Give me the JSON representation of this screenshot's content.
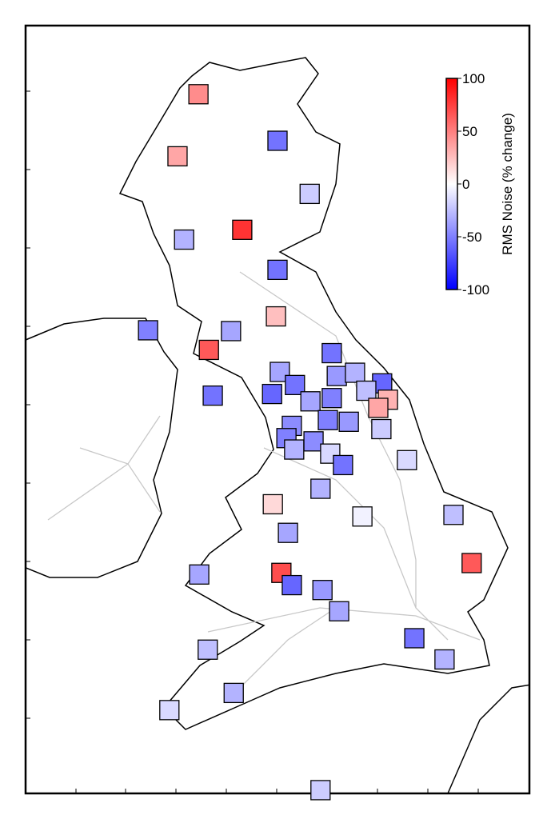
{
  "colorbar": {
    "title": "RMS Noise (% change)",
    "limits": [
      -100,
      100
    ],
    "ticks": [
      100,
      50,
      0,
      -50,
      -100
    ],
    "colormap": [
      "#0000ff",
      "#ffffff",
      "#ff0000"
    ]
  },
  "map_extent": {
    "lon": [
      -10.5,
      2.5
    ],
    "lat": [
      49.8,
      59.2
    ]
  },
  "stations": [
    {
      "lon": -6.04,
      "lat": 58.36,
      "value": 45
    },
    {
      "lon": -6.58,
      "lat": 57.6,
      "value": 35
    },
    {
      "lon": -4.0,
      "lat": 57.79,
      "value": -55
    },
    {
      "lon": -3.17,
      "lat": 57.14,
      "value": -20
    },
    {
      "lon": -4.91,
      "lat": 56.7,
      "value": 80
    },
    {
      "lon": -6.41,
      "lat": 56.58,
      "value": -30
    },
    {
      "lon": -4.0,
      "lat": 56.21,
      "value": -55
    },
    {
      "lon": -4.04,
      "lat": 55.64,
      "value": 25
    },
    {
      "lon": -7.34,
      "lat": 55.47,
      "value": -50
    },
    {
      "lon": -5.2,
      "lat": 55.46,
      "value": -35
    },
    {
      "lon": -5.77,
      "lat": 55.23,
      "value": 65
    },
    {
      "lon": -2.6,
      "lat": 55.19,
      "value": -55
    },
    {
      "lon": -3.94,
      "lat": 54.96,
      "value": -35
    },
    {
      "lon": -2.47,
      "lat": 54.91,
      "value": -40
    },
    {
      "lon": -2.0,
      "lat": 54.95,
      "value": -30
    },
    {
      "lon": -1.3,
      "lat": 54.82,
      "value": -60
    },
    {
      "lon": -3.55,
      "lat": 54.8,
      "value": -55
    },
    {
      "lon": -4.14,
      "lat": 54.69,
      "value": -60
    },
    {
      "lon": -5.67,
      "lat": 54.67,
      "value": -55
    },
    {
      "lon": -1.71,
      "lat": 54.73,
      "value": -25
    },
    {
      "lon": -1.15,
      "lat": 54.62,
      "value": 30
    },
    {
      "lon": -1.4,
      "lat": 54.52,
      "value": 35
    },
    {
      "lon": -2.6,
      "lat": 54.64,
      "value": -50
    },
    {
      "lon": -3.15,
      "lat": 54.6,
      "value": -35
    },
    {
      "lon": -3.63,
      "lat": 54.3,
      "value": -45
    },
    {
      "lon": -2.7,
      "lat": 54.37,
      "value": -50
    },
    {
      "lon": -2.16,
      "lat": 54.35,
      "value": -40
    },
    {
      "lon": -3.77,
      "lat": 54.15,
      "value": -50
    },
    {
      "lon": -1.32,
      "lat": 54.26,
      "value": -20
    },
    {
      "lon": -3.07,
      "lat": 54.11,
      "value": -45
    },
    {
      "lon": -3.57,
      "lat": 54.01,
      "value": -30
    },
    {
      "lon": -2.64,
      "lat": 53.96,
      "value": -15
    },
    {
      "lon": -2.31,
      "lat": 53.82,
      "value": -55
    },
    {
      "lon": -0.66,
      "lat": 53.88,
      "value": -15
    },
    {
      "lon": -2.89,
      "lat": 53.53,
      "value": -30
    },
    {
      "lon": -4.12,
      "lat": 53.34,
      "value": 15
    },
    {
      "lon": -1.81,
      "lat": 53.19,
      "value": -5
    },
    {
      "lon": 0.54,
      "lat": 53.21,
      "value": -25
    },
    {
      "lon": -3.73,
      "lat": 52.99,
      "value": -35
    },
    {
      "lon": 1.01,
      "lat": 52.62,
      "value": 65
    },
    {
      "lon": -6.02,
      "lat": 52.48,
      "value": -35
    },
    {
      "lon": -3.9,
      "lat": 52.5,
      "value": 70
    },
    {
      "lon": -3.63,
      "lat": 52.35,
      "value": -60
    },
    {
      "lon": -2.84,
      "lat": 52.29,
      "value": -40
    },
    {
      "lon": -2.41,
      "lat": 52.03,
      "value": -35
    },
    {
      "lon": -0.47,
      "lat": 51.7,
      "value": -55
    },
    {
      "lon": -5.8,
      "lat": 51.56,
      "value": -25
    },
    {
      "lon": 0.31,
      "lat": 51.44,
      "value": -30
    },
    {
      "lon": -5.13,
      "lat": 51.03,
      "value": -30
    },
    {
      "lon": -6.79,
      "lat": 50.82,
      "value": -15
    },
    {
      "lon": -2.89,
      "lat": 49.84,
      "value": -20
    }
  ]
}
